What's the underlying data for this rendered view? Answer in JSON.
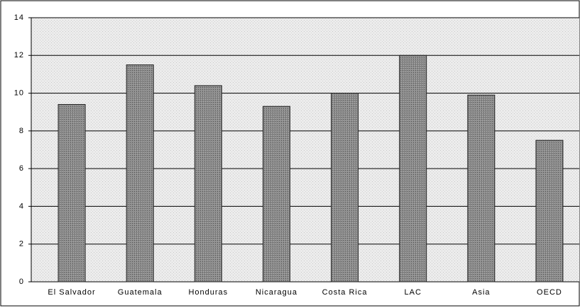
{
  "chart_data": {
    "type": "bar",
    "categories": [
      "El Salvador",
      "Guatemala",
      "Honduras",
      "Nicaragua",
      "Costa Rica",
      "LAC",
      "Asia",
      "OECD"
    ],
    "values": [
      9.4,
      11.5,
      10.4,
      9.3,
      10.0,
      12.0,
      9.9,
      7.5
    ],
    "color": "#8c8c8c",
    "ylim": [
      0,
      14
    ],
    "yticks": [
      0,
      2,
      4,
      6,
      8,
      10,
      12,
      14
    ],
    "grid": true
  }
}
